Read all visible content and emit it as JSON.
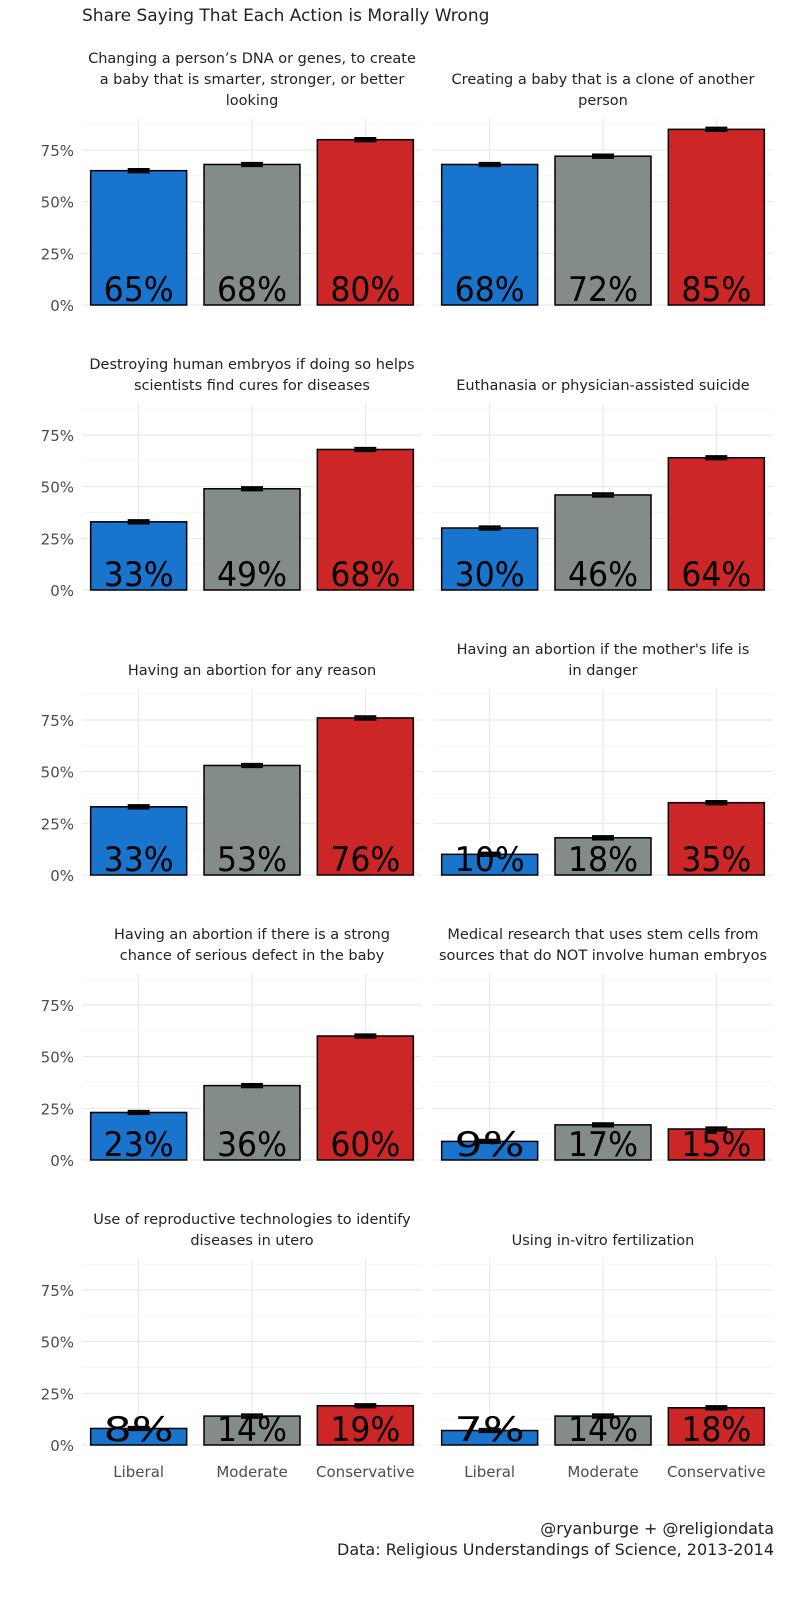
{
  "chart_data": {
    "type": "bar",
    "title": "Share Saying That Each Action is Morally Wrong",
    "categories": [
      "Liberal",
      "Moderate",
      "Conservative"
    ],
    "colors": {
      "Liberal": "#1874CD",
      "Moderate": "#838B8B",
      "Conservative": "#CD2626"
    },
    "y_ticks": [
      "0%",
      "25%",
      "50%",
      "75%"
    ],
    "ylim": [
      0,
      0.9
    ],
    "grid": true,
    "error_bars": true,
    "panels": [
      {
        "title": "Changing a person’s DNA or genes, to create a baby that is smarter, stronger, or better looking",
        "title_lines": [
          "Changing a person’s DNA or genes, to create",
          "a baby that is smarter, stronger, or better",
          "looking"
        ],
        "values": [
          0.65,
          0.68,
          0.8
        ],
        "labels": [
          "65%",
          "68%",
          "80%"
        ]
      },
      {
        "title": "Creating a baby that is a clone of another person",
        "title_lines": [
          "Creating a baby that is a clone of another",
          "person"
        ],
        "values": [
          0.68,
          0.72,
          0.85
        ],
        "labels": [
          "68%",
          "72%",
          "85%"
        ]
      },
      {
        "title": "Destroying human embryos if doing so helps scientists find cures for diseases",
        "title_lines": [
          "Destroying human embryos if doing so helps",
          "scientists find cures for diseases"
        ],
        "values": [
          0.33,
          0.49,
          0.68
        ],
        "labels": [
          "33%",
          "49%",
          "68%"
        ]
      },
      {
        "title": "Euthanasia or physician-assisted suicide",
        "title_lines": [
          "Euthanasia or physician-assisted suicide"
        ],
        "values": [
          0.3,
          0.46,
          0.64
        ],
        "labels": [
          "30%",
          "46%",
          "64%"
        ]
      },
      {
        "title": "Having an abortion for any reason",
        "title_lines": [
          "Having an abortion for any reason"
        ],
        "values": [
          0.33,
          0.53,
          0.76
        ],
        "labels": [
          "33%",
          "53%",
          "76%"
        ]
      },
      {
        "title": "Having an abortion if the mother's life is in danger",
        "title_lines": [
          "Having an abortion if the mother's life is",
          "in danger"
        ],
        "values": [
          0.1,
          0.18,
          0.35
        ],
        "labels": [
          "10%",
          "18%",
          "35%"
        ]
      },
      {
        "title": "Having an abortion if there is a strong chance of serious defect in the baby",
        "title_lines": [
          "Having an abortion if there is a strong",
          "chance of serious defect in the baby"
        ],
        "values": [
          0.23,
          0.36,
          0.6
        ],
        "labels": [
          "23%",
          "36%",
          "60%"
        ]
      },
      {
        "title": "Medical research that uses stem cells from sources that do NOT involve human embryos",
        "title_lines": [
          "Medical research that uses stem cells from",
          "sources that do NOT involve human embryos"
        ],
        "values": [
          0.09,
          0.17,
          0.15
        ],
        "labels": [
          "9%",
          "17%",
          "15%"
        ]
      },
      {
        "title": "Use of reproductive technologies to identify diseases in utero",
        "title_lines": [
          "Use of reproductive technologies to identify",
          "diseases in utero"
        ],
        "values": [
          0.08,
          0.14,
          0.19
        ],
        "labels": [
          "8%",
          "14%",
          "19%"
        ]
      },
      {
        "title": "Using in-vitro fertilization",
        "title_lines": [
          "Using in-vitro fertilization"
        ],
        "values": [
          0.07,
          0.14,
          0.18
        ],
        "labels": [
          "7%",
          "14%",
          "18%"
        ]
      }
    ]
  },
  "credits": {
    "line1": "@ryanburge + @religiondata",
    "line2": "Data: Religious Understandings of Science, 2013-2014"
  }
}
